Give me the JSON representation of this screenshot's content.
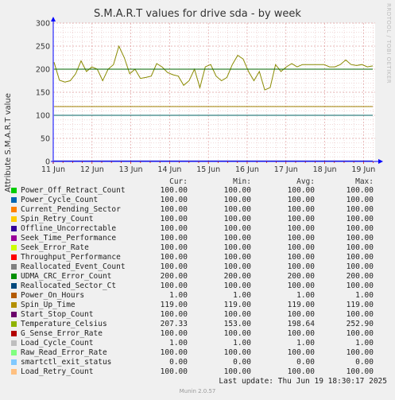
{
  "chart_data": {
    "type": "line",
    "title": "S.M.A.R.T values for drive sda - by week",
    "ylabel": "Attribute S.M.A.R.T value",
    "ylim": [
      0,
      300
    ],
    "yticks": [
      0,
      50,
      100,
      150,
      200,
      250,
      300
    ],
    "xticks": [
      "11 Jun",
      "12 Jun",
      "13 Jun",
      "14 Jun",
      "15 Jun",
      "16 Jun",
      "17 Jun",
      "18 Jun",
      "19 Jun"
    ],
    "grid": true,
    "series": [
      {
        "name": "Temperature_Celsius",
        "color": "#8a8a00",
        "values": [
          215,
          176,
          172,
          175,
          190,
          218,
          195,
          205,
          200,
          175,
          200,
          210,
          250,
          225,
          190,
          200,
          180,
          182,
          185,
          212,
          205,
          193,
          188,
          185,
          165,
          175,
          200,
          160,
          205,
          210,
          185,
          175,
          182,
          210,
          230,
          222,
          195,
          175,
          195,
          155,
          160,
          210,
          195,
          205,
          212,
          205,
          210,
          210,
          210,
          210,
          210,
          205,
          205,
          210,
          220,
          210,
          208,
          210,
          205,
          207
        ]
      },
      {
        "name": "Reallocated_Sector_Ct",
        "color": "#006060",
        "values": [
          100,
          100,
          100,
          100,
          100,
          100,
          100,
          100,
          100,
          100,
          100,
          100,
          100,
          100,
          100,
          100,
          100,
          100,
          100,
          100,
          100,
          100,
          100,
          100,
          100,
          100,
          100,
          100,
          100,
          100,
          100,
          100,
          100,
          100,
          100,
          100,
          100,
          100,
          100,
          100,
          100,
          100,
          100,
          100,
          100,
          100,
          100,
          100,
          100,
          100,
          100,
          100,
          100,
          100,
          100,
          100,
          100,
          100,
          100,
          100
        ]
      },
      {
        "name": "UDMA_CRC_Error_Count",
        "color": "#006600",
        "values": [
          200,
          200,
          200,
          200,
          200,
          200,
          200,
          200,
          200,
          200,
          200,
          200,
          200,
          200,
          200,
          200,
          200,
          200,
          200,
          200,
          200,
          200,
          200,
          200,
          200,
          200,
          200,
          200,
          200,
          200,
          200,
          200,
          200,
          200,
          200,
          200,
          200,
          200,
          200,
          200,
          200,
          200,
          200,
          200,
          200,
          200,
          200,
          200,
          200,
          200,
          200,
          200,
          200,
          200,
          200,
          200,
          200,
          200,
          200,
          200
        ]
      },
      {
        "name": "Spin_Up_Time",
        "color": "#a08000",
        "values": [
          119,
          119,
          119,
          119,
          119,
          119,
          119,
          119,
          119,
          119,
          119,
          119,
          119,
          119,
          119,
          119,
          119,
          119,
          119,
          119,
          119,
          119,
          119,
          119,
          119,
          119,
          119,
          119,
          119,
          119,
          119,
          119,
          119,
          119,
          119,
          119,
          119,
          119,
          119,
          119,
          119,
          119,
          119,
          119,
          119,
          119,
          119,
          119,
          119,
          119,
          119,
          119,
          119,
          119,
          119,
          119,
          119,
          119,
          119,
          119
        ]
      },
      {
        "name": "Power_On_Hours",
        "color": "#3030c0",
        "values": [
          1,
          1,
          1,
          1,
          1,
          1,
          1,
          1,
          1,
          1,
          1,
          1,
          1,
          1,
          1,
          1,
          1,
          1,
          1,
          1,
          1,
          1,
          1,
          1,
          1,
          1,
          1,
          1,
          1,
          1,
          1,
          1,
          1,
          1,
          1,
          1,
          1,
          1,
          1,
          1,
          1,
          1,
          1,
          1,
          1,
          1,
          1,
          1,
          1,
          1,
          1,
          1,
          1,
          1,
          1,
          1,
          1,
          1,
          1,
          1
        ]
      }
    ]
  },
  "legend": {
    "header": {
      "cur": "Cur:",
      "min": "Min:",
      "avg": "Avg:",
      "max": "Max:"
    },
    "rows": [
      {
        "name": "Power_Off_Retract_Count",
        "color": "#00cc00",
        "cur": "100.00",
        "min": "100.00",
        "avg": "100.00",
        "max": "100.00"
      },
      {
        "name": "Power_Cycle_Count",
        "color": "#0066b3",
        "cur": "100.00",
        "min": "100.00",
        "avg": "100.00",
        "max": "100.00"
      },
      {
        "name": "Current_Pending_Sector",
        "color": "#ff8000",
        "cur": "100.00",
        "min": "100.00",
        "avg": "100.00",
        "max": "100.00"
      },
      {
        "name": "Spin_Retry_Count",
        "color": "#ffcc00",
        "cur": "100.00",
        "min": "100.00",
        "avg": "100.00",
        "max": "100.00"
      },
      {
        "name": "Offline_Uncorrectable",
        "color": "#330099",
        "cur": "100.00",
        "min": "100.00",
        "avg": "100.00",
        "max": "100.00"
      },
      {
        "name": "Seek_Time_Performance",
        "color": "#990099",
        "cur": "100.00",
        "min": "100.00",
        "avg": "100.00",
        "max": "100.00"
      },
      {
        "name": "Seek_Error_Rate",
        "color": "#ccff00",
        "cur": "100.00",
        "min": "100.00",
        "avg": "100.00",
        "max": "100.00"
      },
      {
        "name": "Throughput_Performance",
        "color": "#ff0000",
        "cur": "100.00",
        "min": "100.00",
        "avg": "100.00",
        "max": "100.00"
      },
      {
        "name": "Reallocated_Event_Count",
        "color": "#808080",
        "cur": "100.00",
        "min": "100.00",
        "avg": "100.00",
        "max": "100.00"
      },
      {
        "name": "UDMA_CRC_Error_Count",
        "color": "#008f00",
        "cur": "200.00",
        "min": "200.00",
        "avg": "200.00",
        "max": "200.00"
      },
      {
        "name": "Reallocated_Sector_Ct",
        "color": "#00487d",
        "cur": "100.00",
        "min": "100.00",
        "avg": "100.00",
        "max": "100.00"
      },
      {
        "name": "Power_On_Hours",
        "color": "#b35a00",
        "cur": "1.00",
        "min": "1.00",
        "avg": "1.00",
        "max": "1.00"
      },
      {
        "name": "Spin_Up_Time",
        "color": "#b38f00",
        "cur": "119.00",
        "min": "119.00",
        "avg": "119.00",
        "max": "119.00"
      },
      {
        "name": "Start_Stop_Count",
        "color": "#6b006b",
        "cur": "100.00",
        "min": "100.00",
        "avg": "100.00",
        "max": "100.00"
      },
      {
        "name": "Temperature_Celsius",
        "color": "#8fb300",
        "cur": "207.33",
        "min": "153.00",
        "avg": "198.64",
        "max": "252.90"
      },
      {
        "name": "G_Sense_Error_Rate",
        "color": "#b30000",
        "cur": "100.00",
        "min": "100.00",
        "avg": "100.00",
        "max": "100.00"
      },
      {
        "name": "Load_Cycle_Count",
        "color": "#bebebe",
        "cur": "1.00",
        "min": "1.00",
        "avg": "1.00",
        "max": "1.00"
      },
      {
        "name": "Raw_Read_Error_Rate",
        "color": "#80ff80",
        "cur": "100.00",
        "min": "100.00",
        "avg": "100.00",
        "max": "100.00"
      },
      {
        "name": "smartctl_exit_status",
        "color": "#80c9ff",
        "cur": "0.00",
        "min": "0.00",
        "avg": "0.00",
        "max": "0.00"
      },
      {
        "name": "Load_Retry_Count",
        "color": "#ffc080",
        "cur": "100.00",
        "min": "100.00",
        "avg": "100.00",
        "max": "100.00"
      }
    ]
  },
  "footer": {
    "last_update": "Last update: Thu Jun 19 18:30:17 2025",
    "munin": "Munin 2.0.57",
    "watermark": "RRDTOOL / TOBI OETIKER"
  }
}
